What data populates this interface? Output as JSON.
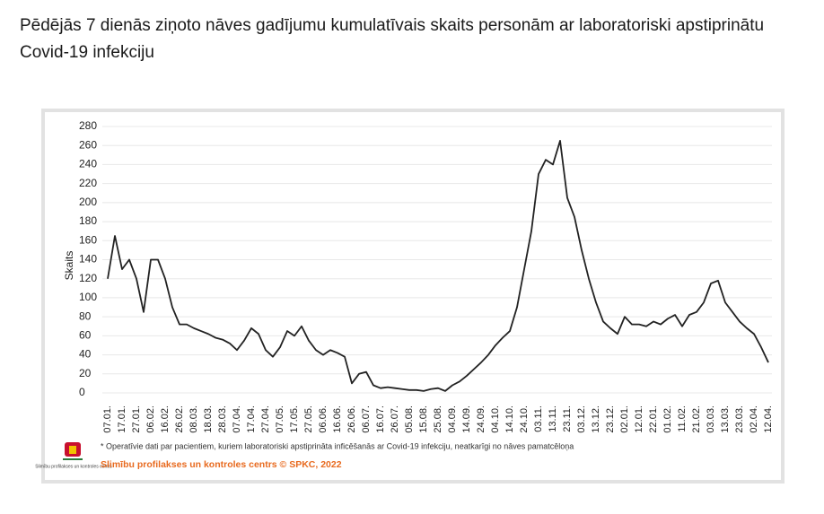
{
  "chart_data": {
    "type": "line",
    "title": "Pēdējās 7 dienās ziņoto nāves gadījumu kumulatīvais skaits personām ar laboratoriski apstiprinātu Covid-19 infekciju",
    "ylabel": "Skaits",
    "footnote": "* Operatīvie dati par pacientiem, kuriem laboratoriski apstiprināta inficēšanās ar Covid-19 infekciju, neatkarīgi no nāves pamatcēloņa",
    "source": "Slimību profilakses un kontroles centrs © SPKC, 2022",
    "logo_text": "Slimību profilakses un kontroles centrs",
    "color": "#222222",
    "grid": true,
    "ylim": [
      0,
      280
    ],
    "yticks": [
      0,
      20,
      40,
      60,
      80,
      100,
      120,
      140,
      160,
      180,
      200,
      220,
      240,
      260,
      280
    ],
    "categories": [
      "07.01.",
      null,
      "17.01.",
      null,
      "27.01.",
      null,
      "06.02.",
      null,
      "16.02.",
      null,
      "26.02.",
      null,
      "08.03.",
      null,
      "18.03.",
      null,
      "28.03.",
      null,
      "07.04.",
      null,
      "17.04.",
      null,
      "27.04.",
      null,
      "07.05.",
      null,
      "17.05.",
      null,
      "27.05.",
      null,
      "06.06.",
      null,
      "16.06.",
      null,
      "26.06.",
      null,
      "06.07.",
      null,
      "16.07.",
      null,
      "26.07.",
      null,
      "05.08.",
      null,
      "15.08.",
      null,
      "25.08.",
      null,
      "04.09.",
      null,
      "14.09.",
      null,
      "24.09.",
      null,
      "04.10.",
      null,
      "14.10.",
      null,
      "24.10.",
      null,
      "03.11.",
      null,
      "13.11.",
      null,
      "23.11.",
      null,
      "03.12.",
      null,
      "13.12.",
      null,
      "23.12.",
      null,
      "02.01.",
      null,
      "12.01.",
      null,
      "22.01.",
      null,
      "01.02.",
      null,
      "11.02.",
      null,
      "21.02.",
      null,
      "03.03.",
      null,
      "13.03.",
      null,
      "23.03.",
      null,
      "02.04.",
      null,
      "12.04."
    ],
    "values": [
      120,
      165,
      130,
      140,
      120,
      85,
      140,
      140,
      120,
      90,
      72,
      72,
      68,
      65,
      62,
      58,
      56,
      52,
      45,
      55,
      68,
      62,
      45,
      38,
      48,
      65,
      60,
      70,
      55,
      45,
      40,
      45,
      42,
      38,
      10,
      20,
      22,
      8,
      5,
      6,
      5,
      4,
      3,
      3,
      2,
      4,
      5,
      2,
      8,
      12,
      18,
      25,
      32,
      40,
      50,
      58,
      65,
      90,
      130,
      170,
      230,
      245,
      240,
      265,
      205,
      185,
      150,
      120,
      95,
      75,
      68,
      62,
      80,
      72,
      72,
      70,
      75,
      72,
      78,
      82,
      70,
      82,
      85,
      95,
      115,
      118,
      95,
      85,
      75,
      68,
      62,
      48,
      32
    ]
  }
}
